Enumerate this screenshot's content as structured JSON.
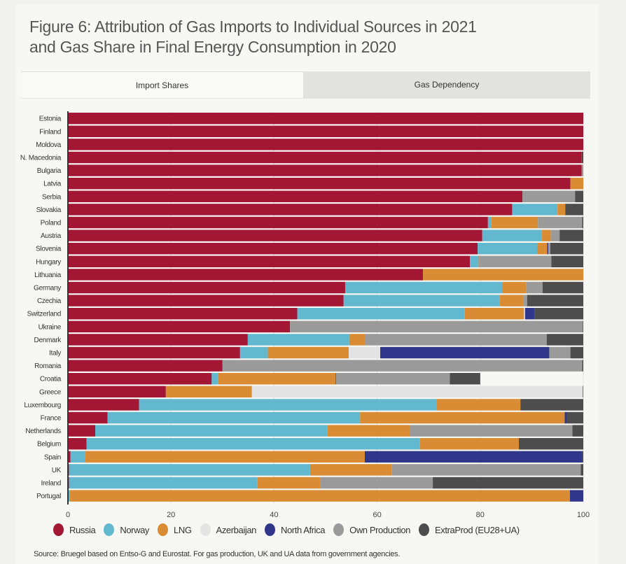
{
  "title_line1": "Figure 6: Attribution of Gas Imports to Individual Sources in 2021",
  "title_line2": "and Gas Share in Final Energy Consumption in 2020",
  "tabs": [
    {
      "label": "Import Shares",
      "active": true
    },
    {
      "label": "Gas Dependency",
      "active": false
    }
  ],
  "source": "Source: Bruegel based on Entso-G and Eurostat. For gas production, UK and UA data from government agencies.",
  "chart_data": {
    "type": "bar",
    "orientation": "horizontal",
    "stacked": true,
    "xlim": [
      0,
      100
    ],
    "xticks": [
      0,
      20,
      40,
      60,
      80,
      100
    ],
    "grid": true,
    "legend_position": "bottom",
    "series_names": [
      "Russia",
      "Norway",
      "LNG",
      "Azerbaijan",
      "North Africa",
      "Own Production",
      "ExtraProd (EU28+UA)"
    ],
    "colors": [
      "#a31735",
      "#62b9cf",
      "#d98c33",
      "#e4e4e4",
      "#30368a",
      "#9a9a9a",
      "#4d4d4d"
    ],
    "categories": [
      "Estonia",
      "Finland",
      "Moldova",
      "N. Macedonia",
      "Bulgaria",
      "Latvia",
      "Serbia",
      "Slovakia",
      "Poland",
      "Austria",
      "Slovenia",
      "Hungary",
      "Lithuania",
      "Germany",
      "Czechia",
      "Switzerland",
      "Ukraine",
      "Denmark",
      "Italy",
      "Romania",
      "Croatia",
      "Greece",
      "Luxembourg",
      "France",
      "Netherlands",
      "Belgium",
      "Spain",
      "UK",
      "Ireland",
      "Portugal"
    ],
    "values": [
      [
        100,
        0,
        0,
        0,
        0,
        0,
        0
      ],
      [
        100,
        0,
        0,
        0,
        0,
        0,
        0
      ],
      [
        100,
        0,
        0,
        0,
        0,
        0,
        0
      ],
      [
        99.7,
        0,
        0,
        0,
        0,
        0,
        0.3
      ],
      [
        99.7,
        0,
        0,
        0,
        0,
        0.3,
        0
      ],
      [
        97.5,
        0,
        2.5,
        0,
        0,
        0,
        0
      ],
      [
        88.2,
        0,
        0,
        0,
        0,
        10.2,
        1.6
      ],
      [
        86.2,
        8.8,
        1.5,
        0,
        0,
        0,
        3.5
      ],
      [
        81.5,
        0.6,
        9.1,
        0,
        0,
        8.6,
        0.2
      ],
      [
        80.4,
        11.6,
        1.7,
        0,
        0,
        1.7,
        4.6
      ],
      [
        79.5,
        11.6,
        1.9,
        0,
        0.2,
        0.4,
        6.4
      ],
      [
        78.0,
        1.6,
        0.2,
        0,
        0,
        14.0,
        6.2
      ],
      [
        68.9,
        0,
        31.1,
        0,
        0,
        0,
        0
      ],
      [
        53.8,
        30.5,
        4.6,
        0,
        0,
        3.2,
        7.9
      ],
      [
        53.5,
        30.3,
        4.6,
        0,
        0,
        0.7,
        10.9
      ],
      [
        44.5,
        32.5,
        11.5,
        0.2,
        1.8,
        0,
        9.5
      ],
      [
        43.1,
        0,
        0,
        0,
        0,
        56.8,
        0.1
      ],
      [
        34.9,
        19.7,
        3.0,
        0,
        0,
        35.3,
        7.1
      ],
      [
        33.4,
        5.4,
        15.7,
        6.1,
        32.8,
        4.1,
        2.5
      ],
      [
        30.0,
        0,
        0,
        0,
        0,
        69.8,
        0.2
      ],
      [
        27.9,
        1.3,
        22.7,
        0,
        0.1,
        22.1,
        5.9
      ],
      [
        19.0,
        0,
        16.7,
        64.2,
        0,
        0,
        0.1
      ],
      [
        13.8,
        57.8,
        16.2,
        0,
        0,
        0,
        12.2
      ],
      [
        7.7,
        49.0,
        39.7,
        0,
        0.4,
        0,
        3.2
      ],
      [
        5.3,
        45.0,
        16.0,
        0,
        0,
        31.6,
        2.1
      ],
      [
        3.6,
        64.7,
        19.2,
        0,
        0,
        0,
        12.5
      ],
      [
        0.5,
        2.9,
        54.2,
        0,
        42.2,
        0,
        0.2
      ],
      [
        0.2,
        46.8,
        15.8,
        0,
        0,
        36.7,
        0.5
      ],
      [
        0.2,
        36.6,
        12.2,
        0,
        0,
        21.8,
        29.2
      ],
      [
        0,
        0.4,
        97.0,
        0,
        2.6,
        0,
        0
      ]
    ]
  }
}
